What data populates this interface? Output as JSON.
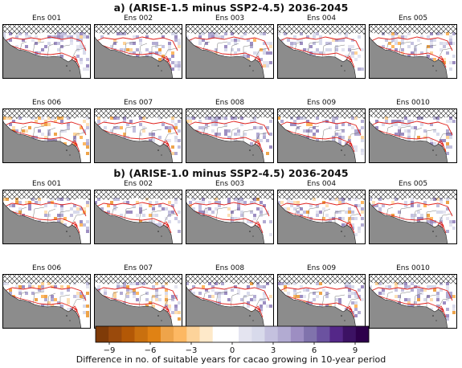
{
  "panels": [
    {
      "title": "a) (ARISE-1.5 minus SSP2-4.5) 2036-2045",
      "ensembles": [
        "Ens 001",
        "Ens 002",
        "Ens 003",
        "Ens 004",
        "Ens 005",
        "Ens 006",
        "Ens 007",
        "Ens 008",
        "Ens 009",
        "Ens 0010"
      ]
    },
    {
      "title": "b) (ARISE-1.0 minus SSP2-4.5) 2036-2045",
      "ensembles": [
        "Ens 001",
        "Ens 002",
        "Ens 003",
        "Ens 004",
        "Ens 005",
        "Ens 006",
        "Ens 007",
        "Ens 008",
        "Ens 009",
        "Ens 0010"
      ]
    }
  ],
  "colorbar": {
    "label": "Difference in no. of suitable years for cacao growing in 10-year period",
    "ticks": [
      "−9",
      "−6",
      "−3",
      "0",
      "3",
      "6",
      "9"
    ],
    "range": [
      -10,
      10
    ],
    "colors": [
      "#7f3b08",
      "#9a4a0c",
      "#b35806",
      "#c9700f",
      "#e08214",
      "#eea44a",
      "#fdb863",
      "#fdd39a",
      "#fee9c9",
      "#ffffff",
      "#ffffff",
      "#e4e4f0",
      "#d8daeb",
      "#c4c1df",
      "#b2abd2",
      "#9d8ec2",
      "#8073ac",
      "#6b52a0",
      "#542788",
      "#3c1264",
      "#2d004b"
    ]
  },
  "map_style": {
    "land_color": "#ffffff",
    "ocean_color": "#8c8c8c",
    "contour_color": "#e0201b",
    "hatch_color": "#222222"
  }
}
